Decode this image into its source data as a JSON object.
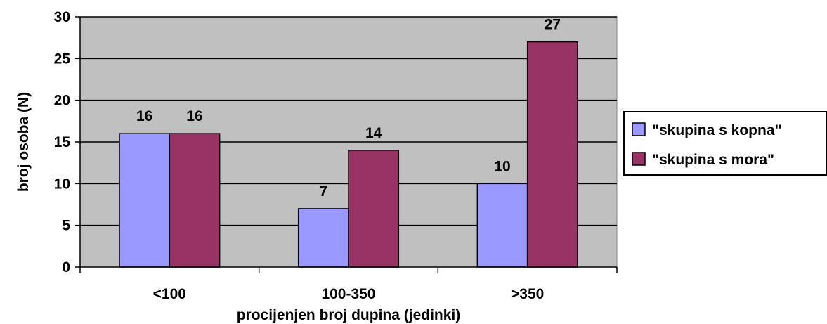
{
  "chart_data": {
    "type": "bar",
    "title": "",
    "xlabel": "procijenjen broj dupina (jedinki)",
    "ylabel": "broj osoba (N)",
    "categories": [
      "<100",
      "100-350",
      ">350"
    ],
    "series": [
      {
        "name": "\"skupina s kopna\"",
        "values": [
          16,
          7,
          10
        ],
        "color": "#9999ff"
      },
      {
        "name": "\"skupina s mora\"",
        "values": [
          16,
          14,
          27
        ],
        "color": "#993366"
      }
    ],
    "ylim": [
      0,
      30
    ],
    "yticks": [
      0,
      5,
      10,
      15,
      20,
      25,
      30
    ],
    "grid": true,
    "plot_background": "#c0c0c0",
    "legend_position": "right"
  }
}
